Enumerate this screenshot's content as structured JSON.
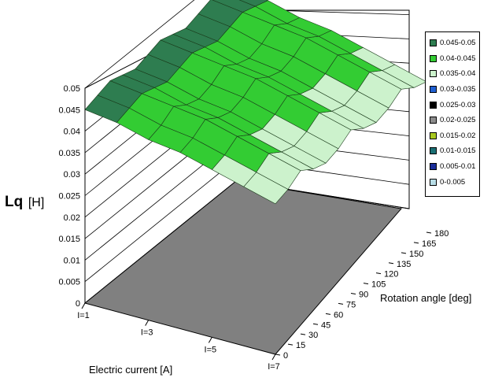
{
  "chart_data": {
    "type": "surface",
    "title": "",
    "zlabel": {
      "main": "Lq",
      "unit": "[H]"
    },
    "xlabel": "Electric current [A]",
    "ylabel": "Rotation angle [deg]",
    "current_ticks": [
      "I=1",
      "I=3",
      "I=5",
      "I=7"
    ],
    "current_values": [
      1,
      2,
      3,
      4,
      5,
      6,
      7
    ],
    "angle_ticks": [
      "0",
      "15",
      "30",
      "45",
      "60",
      "75",
      "90",
      "105",
      "120",
      "135",
      "150",
      "165",
      "180"
    ],
    "z_ticks": [
      "0",
      "0.005",
      "0.01",
      "0.015",
      "0.02",
      "0.025",
      "0.03",
      "0.035",
      "0.04",
      "0.045",
      "0.05"
    ],
    "zlim": [
      0,
      0.05
    ],
    "grid": true,
    "legend_position": "right",
    "surface": {
      "angles": [
        0,
        15,
        30,
        45,
        60,
        75,
        90,
        105,
        120,
        135,
        150,
        165,
        180
      ],
      "currents": [
        1,
        2,
        3,
        4,
        5,
        6,
        7
      ],
      "z": [
        [
          0.045,
          0.046,
          0.047,
          0.046,
          0.045,
          0.046,
          0.047,
          0.046,
          0.045,
          0.046,
          0.047,
          0.046,
          0.045
        ],
        [
          0.044,
          0.045,
          0.046,
          0.045,
          0.044,
          0.045,
          0.046,
          0.045,
          0.044,
          0.045,
          0.046,
          0.045,
          0.044
        ],
        [
          0.042,
          0.043,
          0.045,
          0.043,
          0.042,
          0.043,
          0.045,
          0.043,
          0.042,
          0.043,
          0.045,
          0.043,
          0.042
        ],
        [
          0.041,
          0.042,
          0.044,
          0.042,
          0.041,
          0.042,
          0.044,
          0.042,
          0.041,
          0.042,
          0.044,
          0.042,
          0.041
        ],
        [
          0.039,
          0.04,
          0.042,
          0.04,
          0.039,
          0.04,
          0.042,
          0.04,
          0.039,
          0.04,
          0.042,
          0.04,
          0.039
        ],
        [
          0.037,
          0.038,
          0.04,
          0.038,
          0.037,
          0.038,
          0.04,
          0.038,
          0.037,
          0.038,
          0.04,
          0.038,
          0.037
        ],
        [
          0.035,
          0.036,
          0.038,
          0.036,
          0.035,
          0.036,
          0.038,
          0.036,
          0.035,
          0.036,
          0.038,
          0.036,
          0.035
        ]
      ]
    },
    "legend": [
      {
        "label": "0.045-0.05",
        "color": "#2e7d50",
        "min": 0.045,
        "max": 0.05
      },
      {
        "label": "0.04-0.045",
        "color": "#33cc33",
        "min": 0.04,
        "max": 0.045
      },
      {
        "label": "0.035-0.04",
        "color": "#ccf2cc",
        "min": 0.035,
        "max": 0.04
      },
      {
        "label": "0.03-0.035",
        "color": "#1f5fd0",
        "min": 0.03,
        "max": 0.035
      },
      {
        "label": "0.025-0.03",
        "color": "#000000",
        "min": 0.025,
        "max": 0.03
      },
      {
        "label": "0.02-0.025",
        "color": "#8c8c8c",
        "min": 0.02,
        "max": 0.025
      },
      {
        "label": "0.015-0.02",
        "color": "#a8c820",
        "min": 0.015,
        "max": 0.02
      },
      {
        "label": "0.01-0.015",
        "color": "#1a6e73",
        "min": 0.01,
        "max": 0.015
      },
      {
        "label": "0.005-0.01",
        "color": "#1a2d99",
        "min": 0.005,
        "max": 0.01
      },
      {
        "label": "0-0.005",
        "color": "#b8dde6",
        "min": 0,
        "max": 0.005
      }
    ]
  }
}
